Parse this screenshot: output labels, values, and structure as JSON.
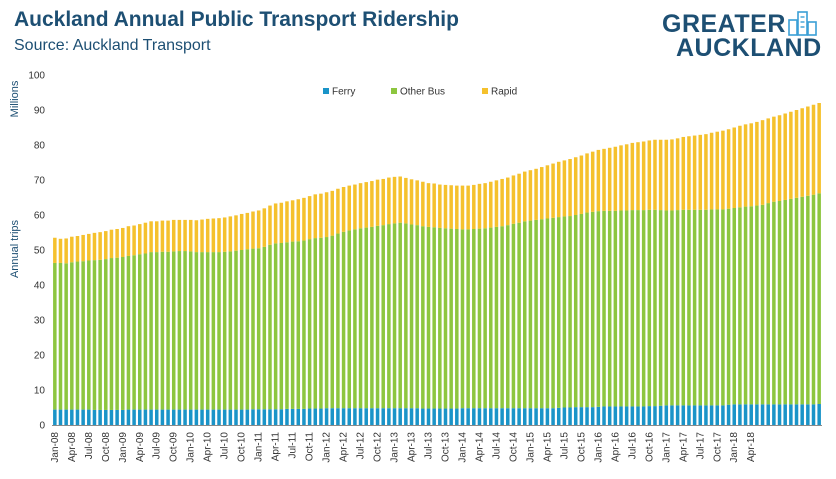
{
  "header": {
    "title": "Auckland Annual Public Transport Ridership",
    "subtitle": "Source: Auckland Transport"
  },
  "logo": {
    "line1": "GREATER",
    "line2": "AUCKLAND"
  },
  "colors": {
    "ferry": "#1a94c8",
    "other_bus": "#8dc63f",
    "rapid": "#f5c12d",
    "text": "#1d4f73"
  },
  "chart_data": {
    "type": "bar",
    "stacked": true,
    "title": "",
    "ylabel": "Annual trips",
    "yunit": "Millions",
    "ylim": [
      0,
      100
    ],
    "yticks": [
      0,
      10,
      20,
      30,
      40,
      50,
      60,
      70,
      80,
      90,
      100
    ],
    "legend_position": "top-center",
    "x_start": "Jan-08",
    "x_tick_labels": [
      "Jan-08",
      "Apr-08",
      "Jul-08",
      "Oct-08",
      "Jan-09",
      "Apr-09",
      "Jul-09",
      "Oct-09",
      "Jan-10",
      "Apr-10",
      "Jul-10",
      "Oct-10",
      "Jan-11",
      "Apr-11",
      "Jul-11",
      "Oct-11",
      "Jan-12",
      "Apr-12",
      "Jul-12",
      "Oct-12",
      "Jan-13",
      "Apr-13",
      "Jul-13",
      "Oct-13",
      "Jan-14",
      "Apr-14",
      "Jul-14",
      "Oct-14",
      "Jan-15",
      "Apr-15",
      "Jul-15",
      "Oct-15",
      "Jan-16",
      "Apr-16",
      "Jul-16",
      "Oct-16",
      "Jan-17",
      "Apr-17",
      "Jul-17",
      "Oct-17",
      "Jan-18",
      "Apr-18"
    ],
    "series": [
      {
        "name": "Ferry",
        "values": [
          4.4,
          4.4,
          4.4,
          4.4,
          4.4,
          4.4,
          4.4,
          4.3,
          4.3,
          4.3,
          4.3,
          4.3,
          4.3,
          4.4,
          4.4,
          4.4,
          4.4,
          4.4,
          4.4,
          4.4,
          4.4,
          4.4,
          4.4,
          4.4,
          4.4,
          4.4,
          4.4,
          4.4,
          4.4,
          4.4,
          4.4,
          4.4,
          4.4,
          4.4,
          4.4,
          4.5,
          4.5,
          4.5,
          4.5,
          4.5,
          4.5,
          4.6,
          4.6,
          4.6,
          4.6,
          4.7,
          4.7,
          4.7,
          4.8,
          4.8,
          4.8,
          4.8,
          4.8,
          4.8,
          4.8,
          4.8,
          4.8,
          4.8,
          4.8,
          4.8,
          4.8,
          4.8,
          4.8,
          4.8,
          4.8,
          4.7,
          4.7,
          4.7,
          4.7,
          4.7,
          4.7,
          4.7,
          4.8,
          4.8,
          4.8,
          4.8,
          4.8,
          4.8,
          4.8,
          4.8,
          4.8,
          4.8,
          4.8,
          4.8,
          4.8,
          4.8,
          4.8,
          4.8,
          4.8,
          4.9,
          5.0,
          5.0,
          5.1,
          5.1,
          5.1,
          5.1,
          5.2,
          5.3,
          5.3,
          5.3,
          5.3,
          5.3,
          5.3,
          5.3,
          5.3,
          5.4,
          5.4,
          5.5,
          5.6,
          5.6,
          5.6,
          5.6,
          5.6,
          5.6,
          5.6,
          5.6,
          5.6,
          5.6,
          5.6,
          5.8,
          5.9,
          5.9,
          5.9,
          5.9,
          5.9,
          5.9,
          5.9,
          5.9,
          5.9,
          5.9,
          5.9,
          5.9,
          5.9,
          5.9,
          5.9,
          6.0
        ]
      },
      {
        "name": "Other Bus",
        "values": [
          41.9,
          41.9,
          41.8,
          42.1,
          42.3,
          42.4,
          42.6,
          42.8,
          42.9,
          43.1,
          43.4,
          43.5,
          43.7,
          43.9,
          44.1,
          44.4,
          44.6,
          45.0,
          45.0,
          45.1,
          45.1,
          45.2,
          45.3,
          45.3,
          45.2,
          45.0,
          45.0,
          45.0,
          45.0,
          45.0,
          45.1,
          45.2,
          45.4,
          45.6,
          45.8,
          45.9,
          46.0,
          46.4,
          47.0,
          47.4,
          47.5,
          47.6,
          47.8,
          47.9,
          48.1,
          48.4,
          48.7,
          48.8,
          48.9,
          49.3,
          49.9,
          50.4,
          50.8,
          51.1,
          51.4,
          51.6,
          51.8,
          52.1,
          52.3,
          52.6,
          52.8,
          53.0,
          52.8,
          52.5,
          52.3,
          52.1,
          51.9,
          51.8,
          51.6,
          51.5,
          51.4,
          51.3,
          51.1,
          51.1,
          51.2,
          51.3,
          51.4,
          51.6,
          51.8,
          52.0,
          52.3,
          52.7,
          53.0,
          53.4,
          53.6,
          53.8,
          54.0,
          54.2,
          54.4,
          54.5,
          54.6,
          54.7,
          54.9,
          55.2,
          55.6,
          55.8,
          55.9,
          55.9,
          55.9,
          55.9,
          56.0,
          56.0,
          56.1,
          56.1,
          56.1,
          56.1,
          56.1,
          55.9,
          55.7,
          55.7,
          55.8,
          55.9,
          55.9,
          55.9,
          55.9,
          55.9,
          56.0,
          56.0,
          56.0,
          56.0,
          56.1,
          56.3,
          56.5,
          56.6,
          56.8,
          57.0,
          57.5,
          57.9,
          58.1,
          58.4,
          58.7,
          59.0,
          59.3,
          59.6,
          59.9,
          60.2
        ]
      },
      {
        "name": "Rapid",
        "values": [
          7.2,
          6.9,
          7.1,
          7.3,
          7.3,
          7.5,
          7.6,
          7.8,
          7.9,
          8.0,
          8.1,
          8.2,
          8.3,
          8.5,
          8.5,
          8.6,
          8.8,
          8.8,
          8.8,
          8.9,
          8.9,
          9.0,
          8.9,
          8.9,
          9.0,
          9.1,
          9.3,
          9.5,
          9.6,
          9.7,
          9.8,
          10.0,
          10.1,
          10.3,
          10.4,
          10.6,
          10.8,
          11.0,
          11.2,
          11.4,
          11.5,
          11.7,
          11.8,
          12.0,
          12.2,
          12.3,
          12.5,
          12.6,
          12.8,
          12.8,
          12.8,
          12.8,
          12.8,
          12.8,
          12.9,
          13.0,
          13.1,
          13.2,
          13.2,
          13.3,
          13.3,
          13.2,
          13.0,
          12.9,
          12.8,
          12.7,
          12.5,
          12.5,
          12.4,
          12.4,
          12.4,
          12.4,
          12.5,
          12.5,
          12.6,
          12.8,
          12.9,
          13.1,
          13.3,
          13.5,
          13.6,
          13.8,
          14.0,
          14.2,
          14.4,
          14.6,
          14.9,
          15.2,
          15.5,
          15.8,
          16.0,
          16.3,
          16.5,
          16.7,
          16.9,
          17.2,
          17.5,
          17.7,
          18.0,
          18.3,
          18.6,
          18.9,
          19.2,
          19.4,
          19.6,
          19.8,
          20.0,
          20.1,
          20.2,
          20.3,
          20.5,
          20.8,
          21.0,
          21.2,
          21.4,
          21.6,
          21.9,
          22.2,
          22.5,
          22.7,
          23.0,
          23.3,
          23.5,
          23.7,
          23.9,
          24.2,
          24.2,
          24.3,
          24.5,
          24.7,
          24.9,
          25.1,
          25.3,
          25.5,
          25.7,
          25.8
        ]
      }
    ]
  }
}
